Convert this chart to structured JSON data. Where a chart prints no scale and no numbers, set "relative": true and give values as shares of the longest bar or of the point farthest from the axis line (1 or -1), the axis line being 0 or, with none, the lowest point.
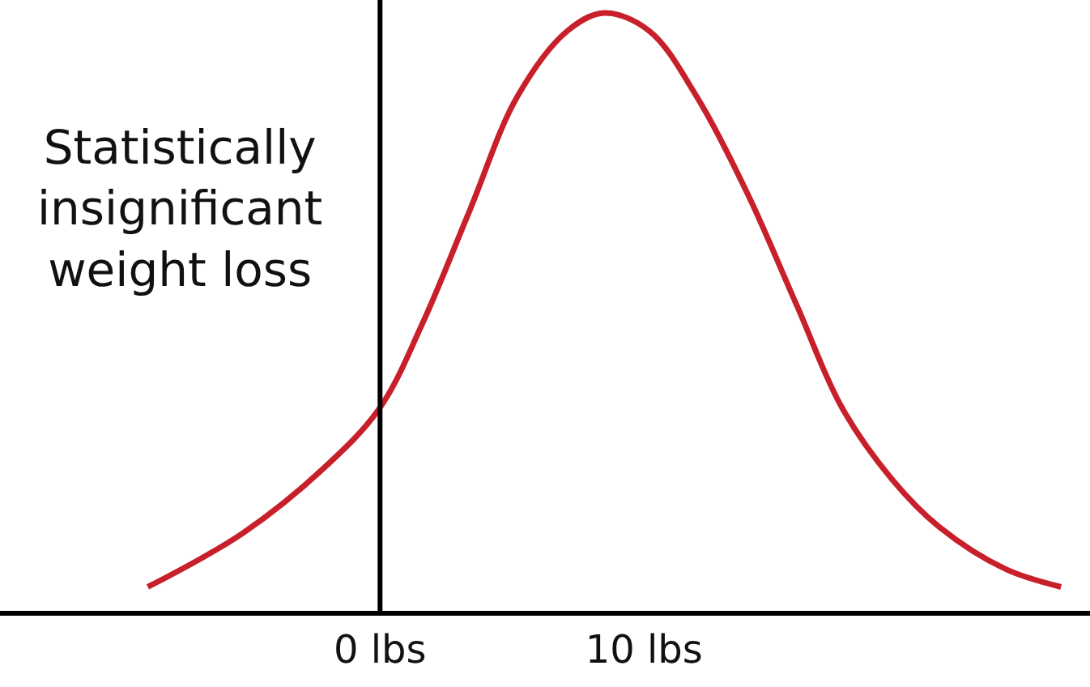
{
  "chart_data": {
    "type": "line",
    "relative": true,
    "x": [
      -8.8,
      -5.2,
      -2.1,
      0,
      1.6,
      3.4,
      5.2,
      7.1,
      8.5,
      10.2,
      12.0,
      13.9,
      15.8,
      17.5,
      19.4,
      21.2,
      23.7,
      25.8
    ],
    "series": [
      {
        "color": "#c8202a",
        "values": [
          0.04,
          0.13,
          0.24,
          0.34,
          0.48,
          0.67,
          0.86,
          0.97,
          1,
          0.97,
          0.86,
          0.7,
          0.51,
          0.34,
          0.22,
          0.14,
          0.07,
          0.04
        ]
      }
    ],
    "xlim": [
      -14.4,
      26.9
    ],
    "xticks": [
      {
        "value": 0,
        "label": "0 lbs"
      },
      {
        "value": 10,
        "label": "10 lbs"
      }
    ],
    "ref_lines": [
      {
        "axis": "x",
        "value": 0,
        "color": "#000000"
      }
    ],
    "annotations": [
      "Statistically\ninsignificant\nweight loss"
    ],
    "marker": "none",
    "line_style": "solid"
  }
}
